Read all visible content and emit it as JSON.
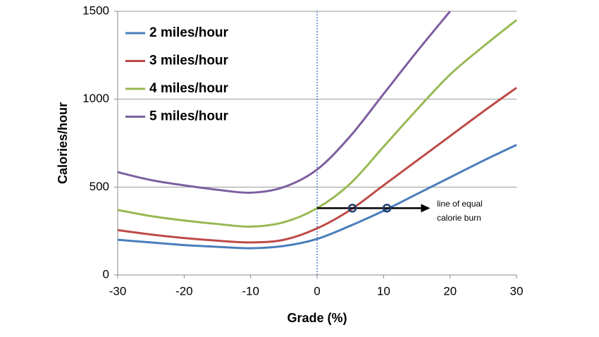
{
  "chart_data": {
    "type": "line",
    "x_label": "Grade (%)",
    "y_label": "Calories/hour",
    "x": [
      -30,
      -25,
      -20,
      -15,
      -10,
      -5,
      0,
      5,
      10,
      15,
      20,
      25,
      30
    ],
    "series": [
      {
        "name": "2 miles/hour",
        "color": "#4a7ebb",
        "values": [
          200,
          185,
          170,
          160,
          152,
          165,
          205,
          280,
          365,
          460,
          555,
          650,
          740
        ]
      },
      {
        "name": "3 miles/hour",
        "color": "#be4b48",
        "values": [
          255,
          230,
          210,
          195,
          185,
          200,
          265,
          370,
          510,
          650,
          790,
          930,
          1065
        ]
      },
      {
        "name": "4 miles/hour",
        "color": "#98b954",
        "values": [
          370,
          335,
          310,
          290,
          275,
          300,
          380,
          520,
          730,
          940,
          1140,
          1300,
          1450
        ]
      },
      {
        "name": "5 miles/hour",
        "color": "#7d5fa0",
        "values": [
          585,
          540,
          510,
          485,
          468,
          500,
          600,
          790,
          1030,
          1270,
          1500,
          null,
          null
        ]
      }
    ],
    "xlim": [
      -30,
      30
    ],
    "ylim": [
      0,
      1500
    ],
    "xticks": [
      -30,
      -20,
      -10,
      0,
      10,
      20,
      30
    ],
    "yticks": [
      0,
      500,
      1000,
      1500
    ],
    "grid": true,
    "legend": "upper left",
    "equal_burn": {
      "y": 380,
      "x_start": 0,
      "x_end": 17,
      "intersections": [
        5.3,
        10.5
      ],
      "label": [
        "line of equal",
        "calorie burn"
      ]
    }
  }
}
